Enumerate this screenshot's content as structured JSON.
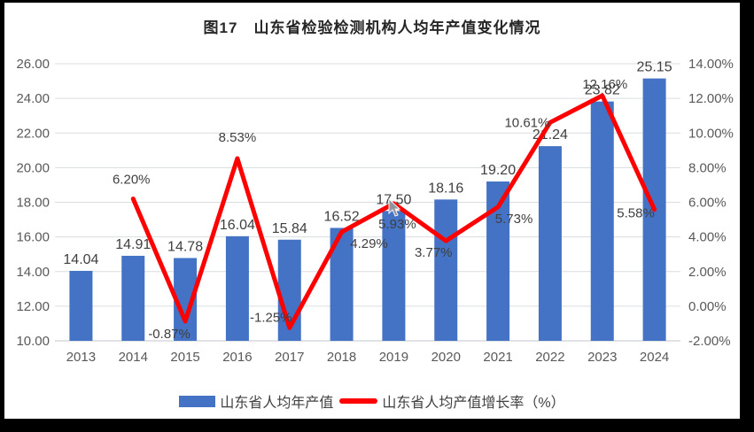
{
  "title": "图17　山东省检验检测机构人均年产值变化情况",
  "chart_data": {
    "type": "combo-bar-line",
    "title": "图17　山东省检验检测机构人均年产值变化情况",
    "xlabel": "",
    "ylabel": "",
    "categories": [
      "2013",
      "2014",
      "2015",
      "2016",
      "2017",
      "2018",
      "2019",
      "2020",
      "2021",
      "2022",
      "2023",
      "2024"
    ],
    "series": [
      {
        "name": "山东省人均年产值",
        "type": "bar",
        "axis": "left",
        "color": "#4472C4",
        "values": [
          14.04,
          14.91,
          14.78,
          16.04,
          15.84,
          16.52,
          17.5,
          18.16,
          19.2,
          21.24,
          23.82,
          25.15
        ],
        "labels": [
          "14.04",
          "14.91",
          "14.78",
          "16.04",
          "15.84",
          "16.52",
          "17.50",
          "18.16",
          "19.20",
          "21.24",
          "23.82",
          "25.15"
        ]
      },
      {
        "name": "山东省人均产值增长率（%）",
        "type": "line",
        "axis": "right",
        "color": "#FF0000",
        "values": [
          null,
          6.2,
          -0.87,
          8.53,
          -1.25,
          4.29,
          5.93,
          3.77,
          5.73,
          10.61,
          12.16,
          5.58
        ],
        "labels": [
          null,
          "6.20%",
          "-0.87%",
          "8.53%",
          "-1.25%",
          "4.29%",
          "5.93%",
          "3.77%",
          "5.73%",
          "10.61%",
          "12.16%",
          "5.58%"
        ],
        "label_offsets": [
          [
            0,
            0
          ],
          [
            -2,
            -22
          ],
          [
            -18,
            14
          ],
          [
            0,
            -24
          ],
          [
            -21,
            -12
          ],
          [
            31,
            13
          ],
          [
            4,
            23
          ],
          [
            -14,
            13
          ],
          [
            18,
            13
          ],
          [
            -26,
            0
          ],
          [
            3,
            -13
          ],
          [
            -21,
            4
          ]
        ]
      }
    ],
    "left_axis": {
      "min": 10,
      "max": 26,
      "step": 2,
      "ticks": [
        "26.00",
        "24.00",
        "22.00",
        "20.00",
        "18.00",
        "16.00",
        "14.00",
        "12.00",
        "10.00"
      ]
    },
    "right_axis": {
      "min": -2,
      "max": 14,
      "step": 2,
      "ticks": [
        "14.00%",
        "12.00%",
        "10.00%",
        "8.00%",
        "6.00%",
        "4.00%",
        "2.00%",
        "0.00%",
        "-2.00%"
      ]
    },
    "grid": true,
    "legend_position": "bottom"
  },
  "legend": {
    "items": [
      {
        "label": "山东省人均年产值",
        "swatch": "bar-swatch",
        "color": "#4472C4"
      },
      {
        "label": "山东省人均产值增长率（%）",
        "swatch": "line-swatch",
        "color": "#FF0000"
      }
    ]
  },
  "colors": {
    "bar": "#4472C4",
    "line": "#FF0000",
    "grid": "#DADDE0",
    "axis_line": "#C2C6CB",
    "axis_text": "#595959",
    "data_label": "#3F3F3F",
    "frame": "#000000",
    "background": "#FFFFFF",
    "cursor": "#8F959E"
  }
}
